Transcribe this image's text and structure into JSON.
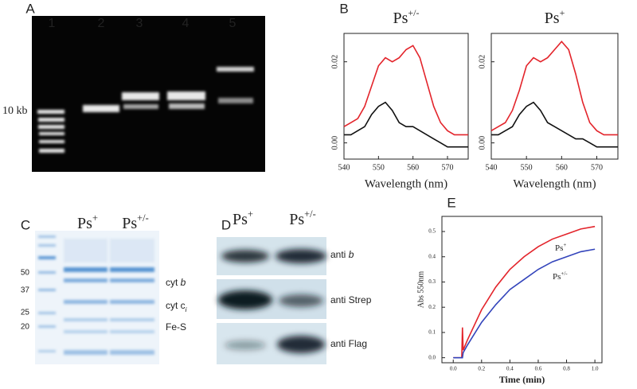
{
  "panel_labels": [
    "A",
    "B",
    "C",
    "D",
    "E"
  ],
  "gel": {
    "lanes": [
      "1",
      "2",
      "3",
      "4",
      "5"
    ],
    "marker": "10 kb"
  },
  "chart_data": [
    {
      "type": "line",
      "title": "Ps",
      "title_sup": "+/-",
      "x_label": "Wavelength (nm)",
      "x": [
        540,
        542,
        544,
        546,
        548,
        550,
        552,
        554,
        556,
        558,
        560,
        562,
        564,
        566,
        568,
        570,
        572,
        574,
        576
      ],
      "xlim": [
        540,
        576
      ],
      "xticks": [
        540,
        550,
        560,
        570
      ],
      "ylim": [
        -0.004,
        0.027
      ],
      "yticks": [
        {
          "value": 0,
          "label": "0.00"
        },
        {
          "value": 0.02,
          "label": "0.02"
        }
      ],
      "series": [
        {
          "color": "#e3242b",
          "values": [
            0.004,
            0.005,
            0.006,
            0.009,
            0.014,
            0.019,
            0.021,
            0.02,
            0.021,
            0.023,
            0.024,
            0.021,
            0.015,
            0.009,
            0.005,
            0.003,
            0.002,
            0.002,
            0.002
          ]
        },
        {
          "color": "#111111",
          "values": [
            0.002,
            0.002,
            0.003,
            0.004,
            0.007,
            0.009,
            0.01,
            0.008,
            0.005,
            0.004,
            0.004,
            0.003,
            0.002,
            0.001,
            0.0,
            -0.001,
            -0.001,
            -0.001,
            -0.001
          ]
        }
      ]
    },
    {
      "type": "line",
      "title": "Ps",
      "title_sup": "+",
      "x_label": "Wavelength (nm)",
      "x": [
        540,
        542,
        544,
        546,
        548,
        550,
        552,
        554,
        556,
        558,
        560,
        562,
        564,
        566,
        568,
        570,
        572,
        574,
        576
      ],
      "xlim": [
        540,
        576
      ],
      "xticks": [
        540,
        550,
        560,
        570
      ],
      "ylim": [
        -0.004,
        0.027
      ],
      "yticks": [
        {
          "value": 0,
          "label": "0.00"
        },
        {
          "value": 0.02,
          "label": "0.02"
        }
      ],
      "series": [
        {
          "color": "#e3242b",
          "values": [
            0.003,
            0.004,
            0.005,
            0.008,
            0.013,
            0.019,
            0.021,
            0.02,
            0.021,
            0.023,
            0.025,
            0.023,
            0.017,
            0.01,
            0.005,
            0.003,
            0.002,
            0.002,
            0.002
          ]
        },
        {
          "color": "#111111",
          "values": [
            0.002,
            0.002,
            0.003,
            0.004,
            0.007,
            0.009,
            0.01,
            0.008,
            0.005,
            0.004,
            0.003,
            0.002,
            0.001,
            0.001,
            0.0,
            -0.001,
            -0.001,
            -0.001,
            -0.001
          ]
        }
      ]
    },
    {
      "type": "line",
      "x_label": "Time (min)",
      "y_label": "Abs 550nm",
      "x": [
        0,
        0.05,
        0.06,
        0.065,
        0.07,
        0.1,
        0.2,
        0.3,
        0.4,
        0.5,
        0.6,
        0.7,
        0.8,
        0.9,
        1.0
      ],
      "xlim": [
        -0.08,
        1.05
      ],
      "xticks": [
        {
          "value": 0,
          "label": "0.0"
        },
        {
          "value": 0.2,
          "label": "0.2"
        },
        {
          "value": 0.4,
          "label": "0.4"
        },
        {
          "value": 0.6,
          "label": "0.6"
        },
        {
          "value": 0.8,
          "label": "0.8"
        },
        {
          "value": 1,
          "label": "1.0"
        }
      ],
      "ylim": [
        -0.02,
        0.56
      ],
      "yticks": [
        {
          "value": 0,
          "label": "0.0"
        },
        {
          "value": 0.1,
          "label": "0.1"
        },
        {
          "value": 0.2,
          "label": "0.2"
        },
        {
          "value": 0.3,
          "label": "0.3"
        },
        {
          "value": 0.4,
          "label": "0.4"
        },
        {
          "value": 0.5,
          "label": "0.5"
        }
      ],
      "series": [
        {
          "name": "Ps",
          "name_sup": "+",
          "color": "#e3242b",
          "values": [
            0,
            0,
            0,
            0.12,
            0.03,
            0.07,
            0.19,
            0.28,
            0.35,
            0.4,
            0.44,
            0.47,
            0.49,
            0.51,
            0.52
          ]
        },
        {
          "name": "Ps",
          "name_sup": "+/-",
          "color": "#3344bb",
          "values": [
            0,
            0,
            0,
            0,
            0.02,
            0.05,
            0.14,
            0.21,
            0.27,
            0.31,
            0.35,
            0.38,
            0.4,
            0.42,
            0.43
          ]
        }
      ]
    }
  ],
  "sds": {
    "columns": [
      {
        "name": "Ps",
        "sup": "+"
      },
      {
        "name": "Ps",
        "sup": "+/-"
      }
    ],
    "ladder": [
      "50",
      "37",
      "25",
      "20"
    ],
    "bands": [
      {
        "text": "cyt ",
        "italic": "b"
      },
      {
        "text": "cyt c",
        "italic_sub": "i"
      },
      {
        "text": "Fe-S"
      }
    ]
  },
  "western": {
    "columns": [
      {
        "name": "Ps",
        "sup": "+"
      },
      {
        "name": "Ps",
        "sup": "+/-"
      }
    ],
    "rows": [
      {
        "text": "anti ",
        "italic": "b"
      },
      {
        "text": "anti Strep"
      },
      {
        "text": "anti Flag"
      }
    ]
  }
}
